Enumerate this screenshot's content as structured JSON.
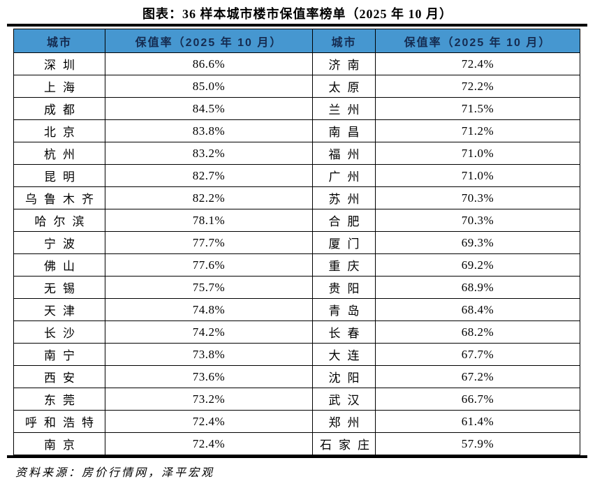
{
  "title": "图表：36 样本城市楼市保值率榜单（2025 年 10 月）",
  "source_note": "资料来源：房价行情网，泽平宏观",
  "colors": {
    "page_bg": "#FFFFFF",
    "header_bg": "#4697D0",
    "header_text": "#152B50",
    "border": "#000000"
  },
  "chart_data": {
    "type": "table",
    "title": "图表：36 样本城市楼市保值率榜单（2025 年 10 月）",
    "columns": [
      "城市",
      "保值率（2025 年 10 月）",
      "城市",
      "保值率（2025 年 10 月）"
    ],
    "rows": [
      [
        "深圳",
        "86.6%",
        "济南",
        "72.4%"
      ],
      [
        "上海",
        "85.0%",
        "太原",
        "72.2%"
      ],
      [
        "成都",
        "84.5%",
        "兰州",
        "71.5%"
      ],
      [
        "北京",
        "83.8%",
        "南昌",
        "71.2%"
      ],
      [
        "杭州",
        "83.2%",
        "福州",
        "71.0%"
      ],
      [
        "昆明",
        "82.7%",
        "广州",
        "71.0%"
      ],
      [
        "乌鲁木齐",
        "82.2%",
        "苏州",
        "70.3%"
      ],
      [
        "哈尔滨",
        "78.1%",
        "合肥",
        "70.3%"
      ],
      [
        "宁波",
        "77.7%",
        "厦门",
        "69.3%"
      ],
      [
        "佛山",
        "77.6%",
        "重庆",
        "69.2%"
      ],
      [
        "无锡",
        "75.7%",
        "贵阳",
        "68.9%"
      ],
      [
        "天津",
        "74.8%",
        "青岛",
        "68.4%"
      ],
      [
        "长沙",
        "74.2%",
        "长春",
        "68.2%"
      ],
      [
        "南宁",
        "73.8%",
        "大连",
        "67.7%"
      ],
      [
        "西安",
        "73.6%",
        "沈阳",
        "67.2%"
      ],
      [
        "东莞",
        "73.2%",
        "武汉",
        "66.7%"
      ],
      [
        "呼和浩特",
        "72.4%",
        "郑州",
        "61.4%"
      ],
      [
        "南京",
        "72.4%",
        "石家庄",
        "57.9%"
      ]
    ]
  }
}
